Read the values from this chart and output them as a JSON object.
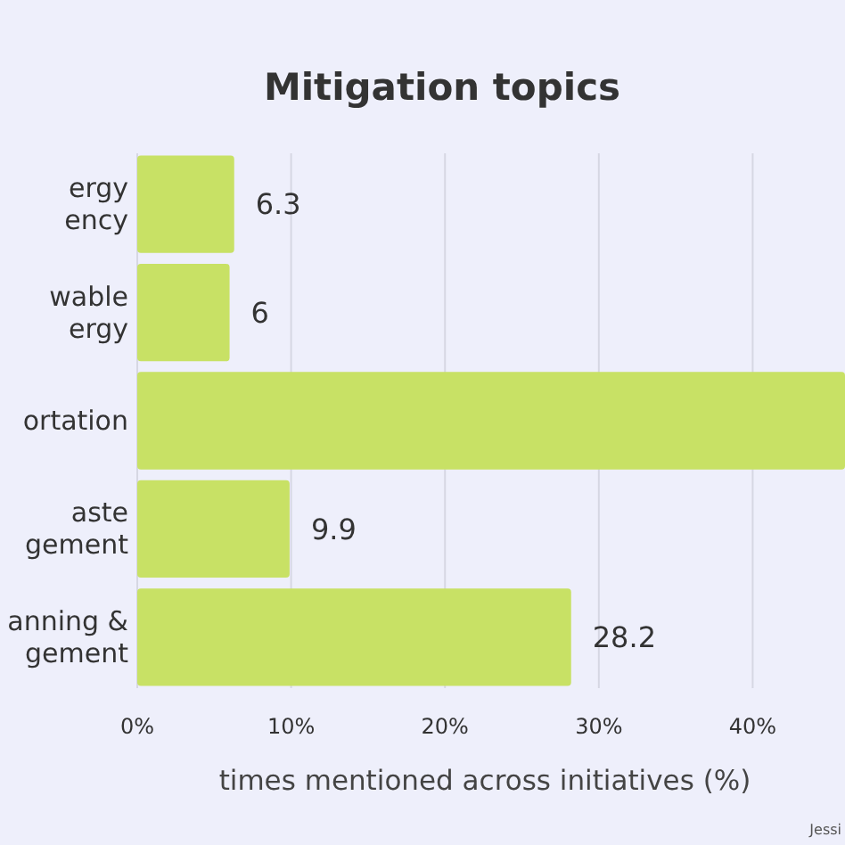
{
  "chart_data": {
    "type": "bar",
    "orientation": "horizontal",
    "title": "Mitigation topics",
    "xlabel": "times mentioned across initiatives (%)",
    "categories": [
      "ergy\nency",
      "wable\nergy",
      "ortation",
      "aste\ngement",
      "anning &\ngement"
    ],
    "values": [
      6.3,
      6,
      46,
      9.9,
      28.2
    ],
    "value_labels": [
      "6.3",
      "6",
      null,
      "9.9",
      "28.2"
    ],
    "color": "#c8e165",
    "xlim": [
      0,
      46
    ],
    "xticks": [
      {
        "value": 0,
        "label": "0%"
      },
      {
        "value": 10,
        "label": "10%"
      },
      {
        "value": 20,
        "label": "20%"
      },
      {
        "value": 30,
        "label": "30%"
      },
      {
        "value": 40,
        "label": "40%"
      }
    ],
    "grid": "x",
    "annotations": [
      "Jessi"
    ]
  }
}
